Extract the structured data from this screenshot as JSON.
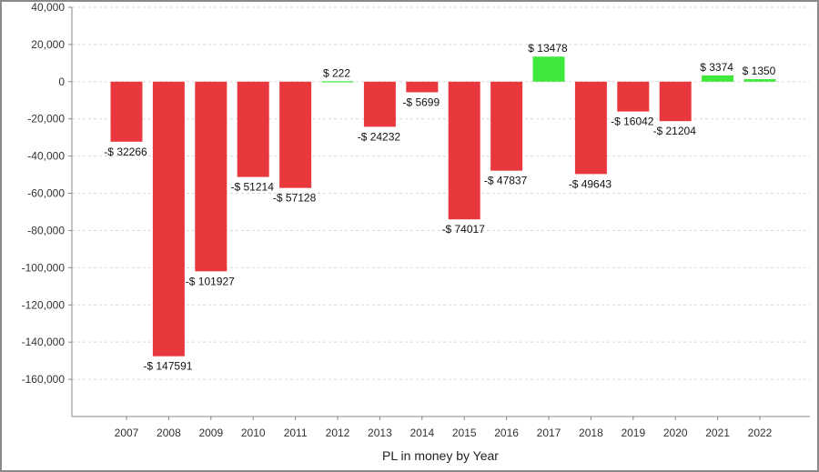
{
  "chart_data": {
    "type": "bar",
    "title": "",
    "xlabel": "PL in money by Year",
    "ylabel": "",
    "ylim": [
      -180000,
      40000
    ],
    "y_ticks": [
      40000,
      20000,
      0,
      -20000,
      -40000,
      -60000,
      -80000,
      -100000,
      -120000,
      -140000,
      -160000
    ],
    "y_tick_labels": [
      "40,000",
      "20,000",
      "0",
      "-20,000",
      "-40,000",
      "-60,000",
      "-80,000",
      "-100,000",
      "-120,000",
      "-140,000",
      "-160,000"
    ],
    "grid": true,
    "legend": "none",
    "categories": [
      "2007",
      "2008",
      "2009",
      "2010",
      "2011",
      "2012",
      "2013",
      "2014",
      "2015",
      "2016",
      "2017",
      "2018",
      "2019",
      "2020",
      "2021",
      "2022"
    ],
    "values": [
      -32266,
      -147591,
      -101927,
      -51214,
      -57128,
      222,
      -24232,
      -5699,
      -74017,
      -47837,
      13478,
      -49643,
      -16042,
      -21204,
      3374,
      1350
    ],
    "data_labels": [
      "-$ 32266",
      "-$ 147591",
      "-$ 101927",
      "-$ 51214",
      "-$ 57128",
      "$ 222",
      "-$ 24232",
      "-$ 5699",
      "-$ 74017",
      "-$ 47837",
      "$ 13478",
      "-$ 49643",
      "-$ 16042",
      "-$ 21204",
      "$ 3374",
      "$ 1350"
    ],
    "colors": {
      "negative": "#e8383d",
      "positive": "#3fe83a",
      "grid": "#d8d8d8",
      "axis": "#888888"
    }
  }
}
